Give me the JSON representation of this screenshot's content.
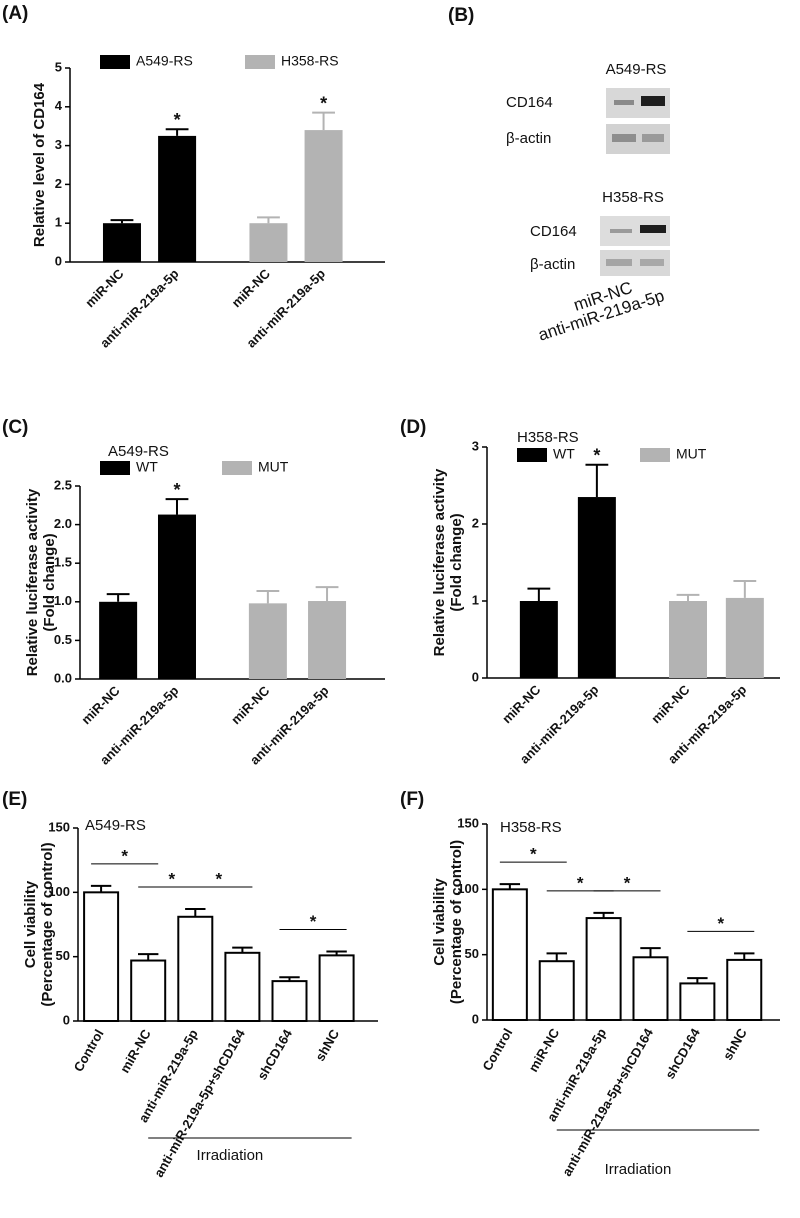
{
  "chart_data": [
    {
      "label": "(A)",
      "type": "bar",
      "ylabel": [
        "Relative level of CD164"
      ],
      "categories": [
        "miR-NC",
        "anti-miR-219a-5p",
        "miR-NC",
        "anti-miR-219a-5p"
      ],
      "series": [
        {
          "name": "A549-RS",
          "color": "#000000",
          "values": [
            1.0,
            3.25,
            null,
            null
          ],
          "errors": [
            0.08,
            0.17,
            null,
            null
          ]
        },
        {
          "name": "H358-RS",
          "color": "#b3b3b3",
          "values": [
            null,
            null,
            1.0,
            3.4
          ],
          "errors": [
            null,
            null,
            0.15,
            0.45
          ]
        }
      ],
      "significance": [
        null,
        "*",
        null,
        "*"
      ],
      "ylim": [
        0,
        5
      ],
      "yticks": [
        0,
        1,
        2,
        3,
        4,
        5
      ]
    },
    {
      "label": "(C)",
      "type": "bar",
      "subtitle": "A549-RS",
      "ylabel": [
        "Relative luciferase activity",
        "(Fold change)"
      ],
      "categories": [
        "miR-NC",
        "anti-miR-219a-5p",
        "miR-NC",
        "anti-miR-219a-5p"
      ],
      "series": [
        {
          "name": "WT",
          "color": "#000000",
          "values": [
            1.0,
            2.13,
            null,
            null
          ],
          "errors": [
            0.1,
            0.2,
            null,
            null
          ]
        },
        {
          "name": "MUT",
          "color": "#b3b3b3",
          "values": [
            null,
            null,
            0.98,
            1.01
          ],
          "errors": [
            null,
            null,
            0.16,
            0.18
          ]
        }
      ],
      "significance": [
        null,
        "*",
        null,
        null
      ],
      "ylim": [
        0,
        2.5
      ],
      "yticks": [
        {
          "value": 0,
          "label": "0.0"
        },
        0.5,
        {
          "value": 1,
          "label": "1.0"
        },
        1.5,
        {
          "value": 2,
          "label": "2.0"
        },
        2.5
      ]
    },
    {
      "label": "(D)",
      "type": "bar",
      "subtitle": "H358-RS",
      "ylabel": [
        "Relative luciferase activity",
        "(Fold change)"
      ],
      "categories": [
        "miR-NC",
        "anti-miR-219a-5p",
        "miR-NC",
        "anti-miR-219a-5p"
      ],
      "series": [
        {
          "name": "WT",
          "color": "#000000",
          "values": [
            1.0,
            2.35,
            null,
            null
          ],
          "errors": [
            0.16,
            0.42,
            null,
            null
          ]
        },
        {
          "name": "MUT",
          "color": "#b3b3b3",
          "values": [
            null,
            null,
            1.0,
            1.04
          ],
          "errors": [
            null,
            null,
            0.08,
            0.22
          ]
        }
      ],
      "significance": [
        null,
        "*",
        null,
        null
      ],
      "ylim": [
        0,
        3
      ],
      "yticks": [
        0,
        1,
        2,
        3
      ]
    },
    {
      "label": "(E)",
      "type": "bar",
      "subtitle": "A549-RS",
      "ylabel": [
        "Cell viability",
        "(Percentage of control)"
      ],
      "categories": [
        "Control",
        "miR-NC",
        "anti-miR-219a-5p",
        "anti-miR-219a-5p+shCD164",
        "shCD164",
        "shNC"
      ],
      "values": [
        100,
        47,
        81,
        53,
        31,
        51
      ],
      "errors": [
        5,
        5,
        6,
        4,
        3,
        3
      ],
      "color": "#ffffff",
      "edgecolor": "#000000",
      "brackets": [
        {
          "from": 0,
          "to": 1,
          "text": "*"
        },
        {
          "from": 1,
          "to": 2,
          "text": "*"
        },
        {
          "from": 2,
          "to": 3,
          "text": "*"
        },
        {
          "from": 4,
          "to": 5,
          "text": "*"
        }
      ],
      "group_label": {
        "text": "Irradiation",
        "from": 1,
        "to": 5
      },
      "ylim": [
        0,
        150
      ],
      "yticks": [
        0,
        50,
        100,
        150
      ]
    },
    {
      "label": "(F)",
      "type": "bar",
      "subtitle": "H358-RS",
      "ylabel": [
        "Cell viability",
        "(Percentage of control)"
      ],
      "categories": [
        "Control",
        "miR-NC",
        "anti-miR-219a-5p",
        "anti-miR-219a-5p+shCD164",
        "shCD164",
        "shNC"
      ],
      "values": [
        100,
        45,
        78,
        48,
        28,
        46
      ],
      "errors": [
        4,
        6,
        4,
        7,
        4,
        5
      ],
      "color": "#ffffff",
      "edgecolor": "#000000",
      "brackets": [
        {
          "from": 0,
          "to": 1,
          "text": "*"
        },
        {
          "from": 1,
          "to": 2,
          "text": "*"
        },
        {
          "from": 2,
          "to": 3,
          "text": "*"
        },
        {
          "from": 4,
          "to": 5,
          "text": "*"
        }
      ],
      "group_label": {
        "text": "Irradiation",
        "from": 1,
        "to": 5
      },
      "ylim": [
        0,
        150
      ],
      "yticks": [
        0,
        50,
        100,
        150
      ]
    }
  ],
  "blot": {
    "label": "(B)",
    "lanes": [
      "miR-NC",
      "anti-miR-219a-5p"
    ],
    "panels": [
      {
        "title": "A549-RS",
        "rows": [
          "CD164",
          "β-actin"
        ]
      },
      {
        "title": "H358-RS",
        "rows": [
          "CD164",
          "β-actin"
        ]
      }
    ]
  }
}
